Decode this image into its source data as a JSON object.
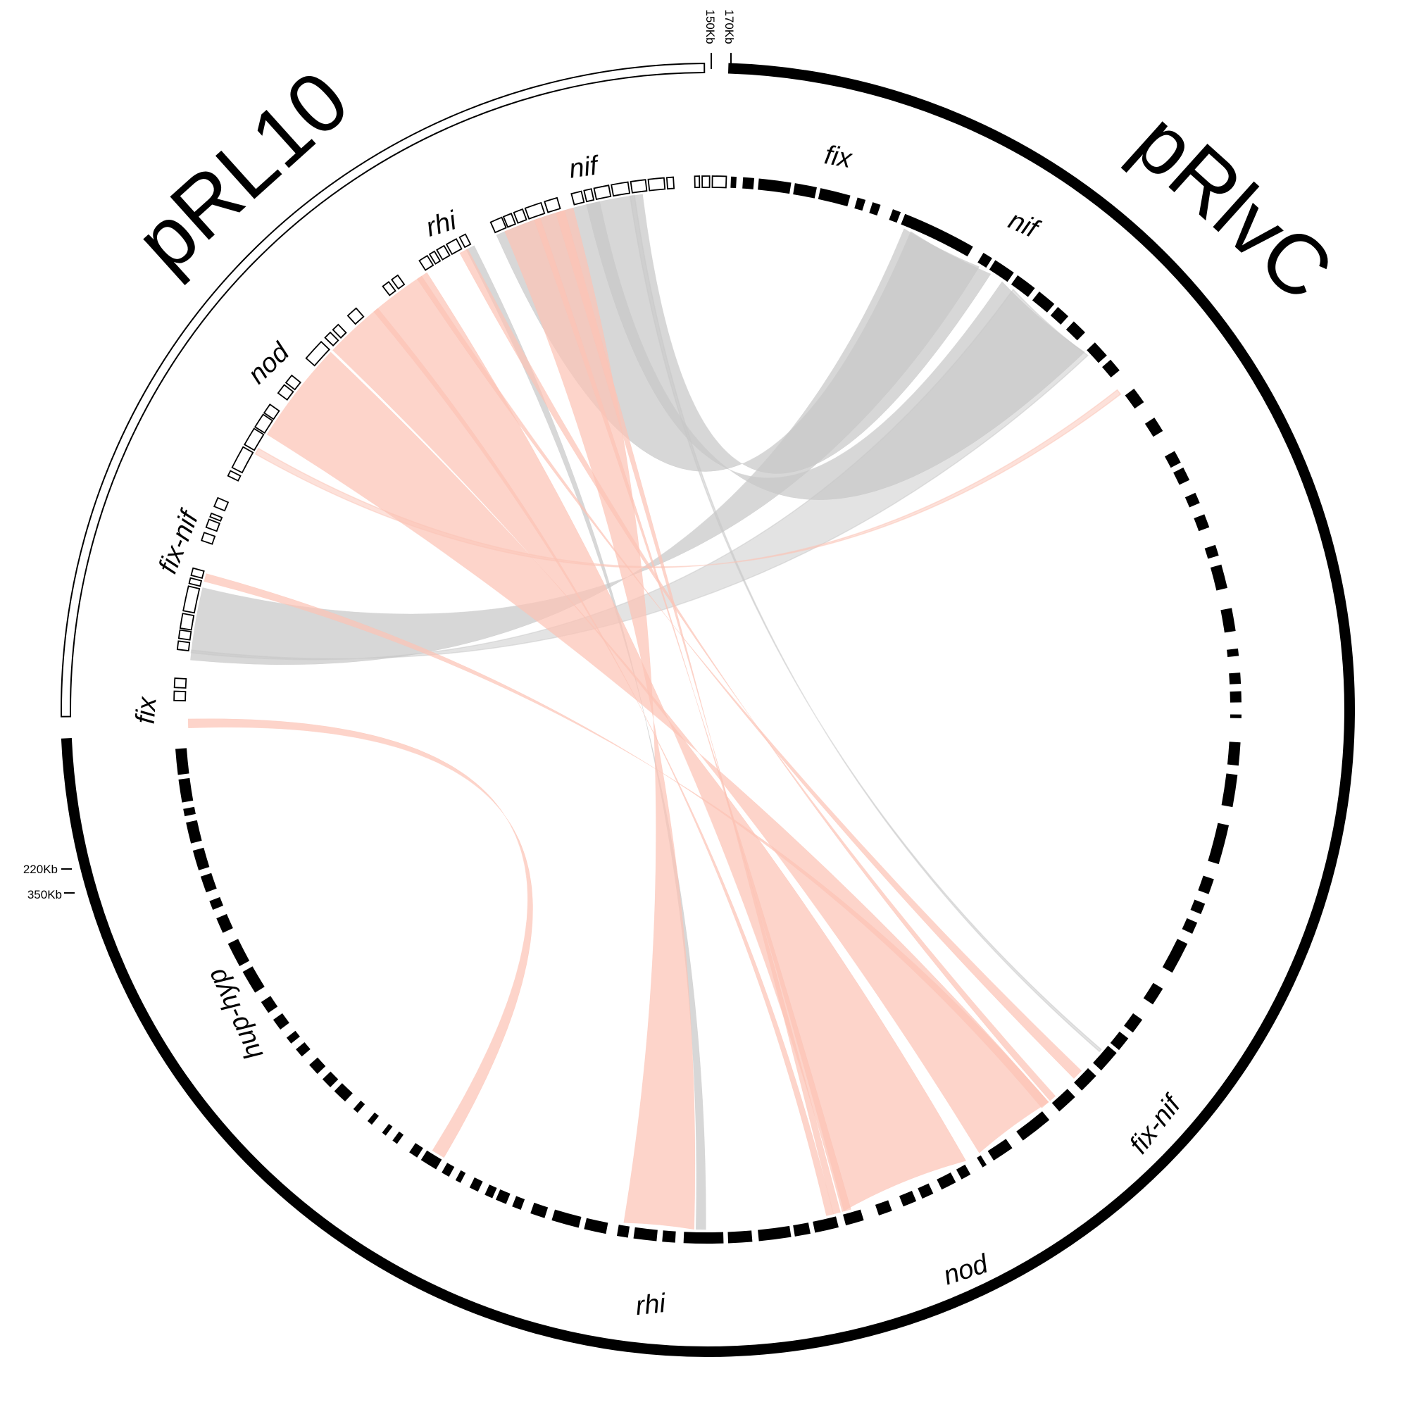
{
  "plasmids": [
    {
      "id": "pRL10",
      "name": "pRL10",
      "start_label": "150Kb",
      "end_label": "220Kb",
      "ring_style": "outline"
    },
    {
      "id": "pRlvC",
      "name": "pRlvC",
      "start_label": "170Kb",
      "end_label": "350Kb",
      "ring_style": "solid"
    }
  ],
  "clusters": {
    "pRL10": [
      "nif",
      "rhi",
      "nod",
      "fix-nif",
      "fix"
    ],
    "pRlvC": [
      "fix",
      "nif",
      "fix-nif",
      "nod",
      "rhi",
      "hup-hyp"
    ]
  },
  "colors": {
    "inverted_link": "#c8c8c8",
    "direct_link": "#fcc4b6",
    "ring_fill": "#000000",
    "ring_outline": "#ffffff"
  },
  "link_legend": {
    "grey": "inverted",
    "salmon": "direct"
  }
}
